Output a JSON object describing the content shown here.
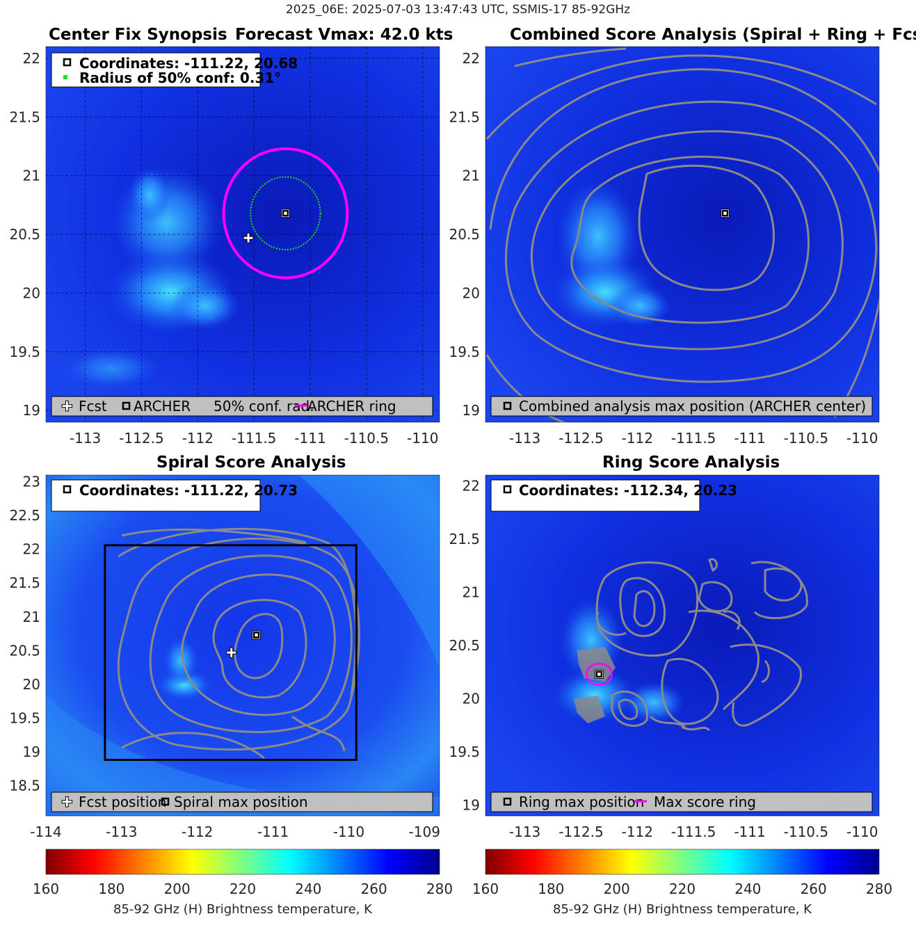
{
  "suptitle": "2025_06E: 2025-07-03 13:47:43 UTC, SSMIS-17 85-92GHz",
  "colors": {
    "forecast_marker": "#ffffff",
    "archer_marker": "#000000",
    "ring": "#ff00ff",
    "conf_circle": "#22dd22",
    "contour": "#8a8a8a",
    "legend_bg": "#c0c0c0",
    "box": "#000000"
  },
  "panels": [
    {
      "title": "Center Fix Synopsis",
      "subtitle": "Forecast Vmax: 42.0 kts",
      "info_lines": [
        "Coordinates: -111.22, 20.68",
        "Radius of 50% conf: 0.31°"
      ],
      "legend": [
        "Fcst",
        "ARCHER",
        "50% conf. rad.",
        "ARCHER ring"
      ]
    },
    {
      "title": "Combined Score Analysis (Spiral + Ring + Fcst_Pe",
      "legend": [
        "Combined analysis max position (ARCHER center)"
      ]
    },
    {
      "title": "Spiral Score Analysis",
      "info_lines": [
        "Coordinates: -111.22, 20.73"
      ],
      "legend": [
        "Fcst position",
        "Spiral max position"
      ]
    },
    {
      "title": "Ring Score Analysis",
      "info_lines": [
        "Coordinates: -112.34, 20.23"
      ],
      "legend": [
        "Ring max position",
        "Max score ring"
      ]
    }
  ],
  "colorbar": {
    "label": "85-92 GHz (H) Brightness temperature, K",
    "ticks": [
      "160",
      "180",
      "200",
      "220",
      "240",
      "260",
      "280"
    ]
  },
  "chart_data": [
    {
      "type": "heatmap",
      "title": "Center Fix Synopsis",
      "xlim": [
        -113.35,
        -109.85
      ],
      "ylim": [
        18.9,
        22.1
      ],
      "xticks": [
        -113,
        -112.5,
        -112,
        -111.5,
        -111,
        -110.5,
        -110
      ],
      "yticks": [
        19,
        19.5,
        20,
        20.5,
        21,
        21.5,
        22
      ],
      "forecast_position": [
        -111.55,
        20.47
      ],
      "archer_center": [
        -111.22,
        20.68
      ],
      "conf_radius_deg": 0.31,
      "archer_ring_radius_deg": 0.55
    },
    {
      "type": "heatmap",
      "title": "Combined Score Analysis (Spiral + Ring + Fcst_Pe",
      "xlim": [
        -113.35,
        -109.85
      ],
      "ylim": [
        18.9,
        22.1
      ],
      "xticks": [
        -113,
        -112.5,
        -112,
        -111.5,
        -111,
        -110.5,
        -110
      ],
      "yticks": [
        19,
        19.5,
        20,
        20.5,
        21,
        21.5,
        22
      ],
      "max_position": [
        -111.22,
        20.68
      ]
    },
    {
      "type": "heatmap",
      "title": "Spiral Score Analysis",
      "xlim": [
        -114,
        -108.8
      ],
      "ylim": [
        18.05,
        23.1
      ],
      "xticks": [
        -114,
        -113,
        -112,
        -111,
        -110,
        -109
      ],
      "yticks": [
        18.5,
        19,
        19.5,
        20,
        20.5,
        21,
        21.5,
        22,
        22.5,
        23
      ],
      "forecast_position": [
        -111.55,
        20.47
      ],
      "spiral_max_position": [
        -111.22,
        20.73
      ],
      "search_box": {
        "x": [
          -113.22,
          -109.9
        ],
        "y": [
          18.88,
          22.06
        ]
      }
    },
    {
      "type": "heatmap",
      "title": "Ring Score Analysis",
      "xlim": [
        -113.35,
        -109.85
      ],
      "ylim": [
        18.9,
        22.1
      ],
      "xticks": [
        -113,
        -112.5,
        -112,
        -111.5,
        -111,
        -110.5,
        -110
      ],
      "yticks": [
        19,
        19.5,
        20,
        20.5,
        21,
        21.5,
        22
      ],
      "ring_max_position": [
        -112.34,
        20.23
      ],
      "max_score_ring_radius_deg": 0.1
    }
  ],
  "colorbar_range": [
    160,
    280
  ]
}
